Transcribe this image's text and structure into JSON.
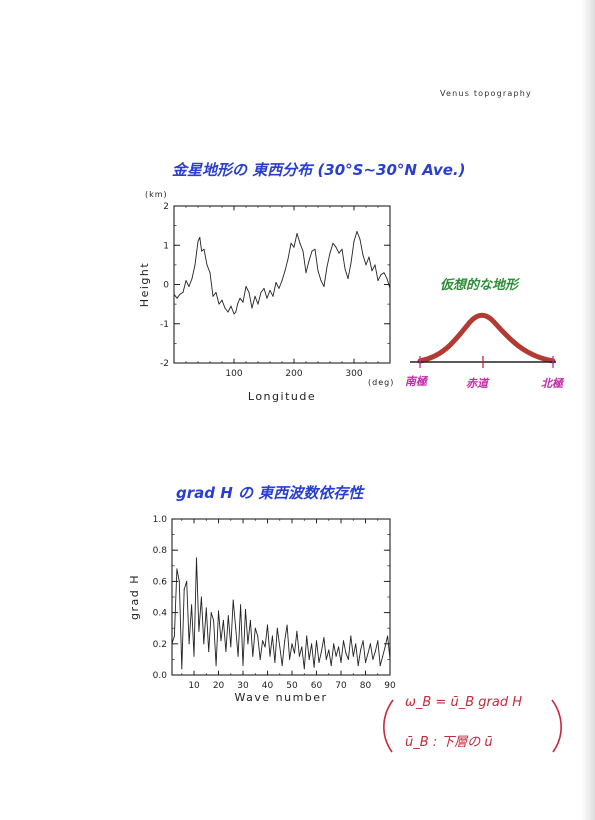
{
  "header": {
    "label": "Venus topography"
  },
  "annotations": {
    "title_1": "金星地形の 東西分布 (30°S~30°N Ave.)",
    "title_2": "grad H の 東西波数依存性",
    "sketch_title": "仮想的な地形",
    "sketch_labels": [
      "南極",
      "赤道",
      "北極"
    ],
    "formula_line_1": "ω_B = ū_B grad H",
    "formula_line_2": "ū_B : 下層の ū"
  },
  "colors": {
    "handwriting_blue": "#2a3fd0",
    "sketch_hill": "#b33a32",
    "sketch_green": "#2f8d3a",
    "sketch_pink": "#c42aa8",
    "formula_red": "#c62a3c"
  },
  "chart_data": [
    {
      "type": "line",
      "ylabel": "Height",
      "yunit": "(km)",
      "xlabel": "Longitude",
      "xunit": "(deg)",
      "xlim": [
        0,
        360
      ],
      "ylim": [
        -2,
        2
      ],
      "x_ticks": [
        100,
        200,
        300
      ],
      "y_ticks": [
        -2,
        -1,
        0,
        1,
        2
      ],
      "x_minor": {
        "step": 20,
        "tick": 0.012
      },
      "y_minor": {
        "step": 0.5,
        "tick": 0.012
      },
      "major_tick": 0.028,
      "series": [
        {
          "x": [
            0,
            5,
            10,
            15,
            20,
            25,
            30,
            35,
            40,
            43,
            46,
            50,
            55,
            60,
            65,
            70,
            75,
            80,
            85,
            90,
            95,
            100,
            103,
            106,
            110,
            115,
            120,
            125,
            130,
            135,
            140,
            145,
            150,
            155,
            160,
            165,
            170,
            175,
            180,
            185,
            190,
            195,
            200,
            205,
            210,
            215,
            220,
            225,
            230,
            235,
            240,
            245,
            250,
            255,
            260,
            265,
            270,
            275,
            280,
            285,
            290,
            295,
            300,
            305,
            310,
            315,
            320,
            325,
            330,
            335,
            340,
            345,
            350,
            355,
            360
          ],
          "y": [
            -0.25,
            -0.35,
            -0.25,
            -0.2,
            0.1,
            -0.05,
            0.15,
            0.5,
            1.1,
            1.2,
            0.85,
            0.9,
            0.5,
            0.3,
            -0.3,
            -0.2,
            -0.5,
            -0.4,
            -0.6,
            -0.7,
            -0.55,
            -0.75,
            -0.7,
            -0.5,
            -0.35,
            -0.45,
            -0.05,
            -0.2,
            -0.6,
            -0.3,
            -0.5,
            -0.2,
            -0.1,
            -0.35,
            -0.15,
            -0.3,
            0.05,
            -0.1,
            0.1,
            0.35,
            0.65,
            1.05,
            0.95,
            1.3,
            1.05,
            0.85,
            0.3,
            0.6,
            0.85,
            0.9,
            0.35,
            0.1,
            -0.05,
            0.45,
            0.8,
            1.05,
            0.95,
            0.8,
            0.9,
            0.4,
            0.15,
            0.55,
            1.1,
            1.35,
            1.15,
            0.75,
            0.5,
            0.7,
            0.35,
            0.5,
            0.1,
            0.25,
            0.3,
            0.15,
            -0.1
          ]
        }
      ]
    },
    {
      "type": "line",
      "ylabel": "grad H",
      "xlabel": "Wave number",
      "xlim": [
        1,
        90
      ],
      "ylim": [
        0.0,
        1.0
      ],
      "x_ticks": [
        10,
        20,
        30,
        40,
        50,
        60,
        70,
        80,
        90
      ],
      "y_ticks": [
        0.0,
        0.2,
        0.4,
        0.6,
        0.8,
        1.0
      ],
      "y_tick_labels": [
        "0.0",
        "0.2",
        "0.4",
        "0.6",
        "0.8",
        "1.0"
      ],
      "x_minor": {
        "step": 5,
        "tick": 0.012
      },
      "y_minor": {
        "step": 0.1,
        "tick": 0.012
      },
      "major_tick": 0.028,
      "series": [
        {
          "x": [
            1,
            2,
            3,
            4,
            5,
            6,
            7,
            8,
            9,
            10,
            11,
            12,
            13,
            14,
            15,
            16,
            17,
            18,
            19,
            20,
            21,
            22,
            23,
            24,
            25,
            26,
            27,
            28,
            29,
            30,
            31,
            32,
            33,
            34,
            35,
            36,
            37,
            38,
            39,
            40,
            41,
            42,
            43,
            44,
            45,
            46,
            47,
            48,
            49,
            50,
            51,
            52,
            53,
            54,
            55,
            56,
            57,
            58,
            59,
            60,
            61,
            62,
            63,
            64,
            65,
            66,
            67,
            68,
            69,
            70,
            71,
            72,
            73,
            74,
            75,
            76,
            77,
            78,
            79,
            80,
            81,
            82,
            83,
            84,
            85,
            86,
            87,
            88,
            89,
            90
          ],
          "y": [
            0.2,
            0.25,
            0.68,
            0.6,
            0.04,
            0.55,
            0.6,
            0.2,
            0.45,
            0.12,
            0.75,
            0.28,
            0.5,
            0.2,
            0.43,
            0.15,
            0.4,
            0.35,
            0.06,
            0.41,
            0.22,
            0.35,
            0.15,
            0.38,
            0.18,
            0.48,
            0.3,
            0.12,
            0.45,
            0.06,
            0.42,
            0.2,
            0.35,
            0.12,
            0.3,
            0.25,
            0.1,
            0.22,
            0.18,
            0.32,
            0.12,
            0.25,
            0.08,
            0.3,
            0.18,
            0.06,
            0.22,
            0.32,
            0.1,
            0.2,
            0.14,
            0.28,
            0.12,
            0.18,
            0.04,
            0.25,
            0.1,
            0.2,
            0.05,
            0.22,
            0.08,
            0.15,
            0.24,
            0.1,
            0.16,
            0.06,
            0.2,
            0.12,
            0.18,
            0.08,
            0.22,
            0.14,
            0.1,
            0.25,
            0.12,
            0.2,
            0.06,
            0.16,
            0.22,
            0.08,
            0.14,
            0.2,
            0.1,
            0.15,
            0.22,
            0.06,
            0.12,
            0.18,
            0.25,
            0.1
          ]
        }
      ]
    }
  ]
}
